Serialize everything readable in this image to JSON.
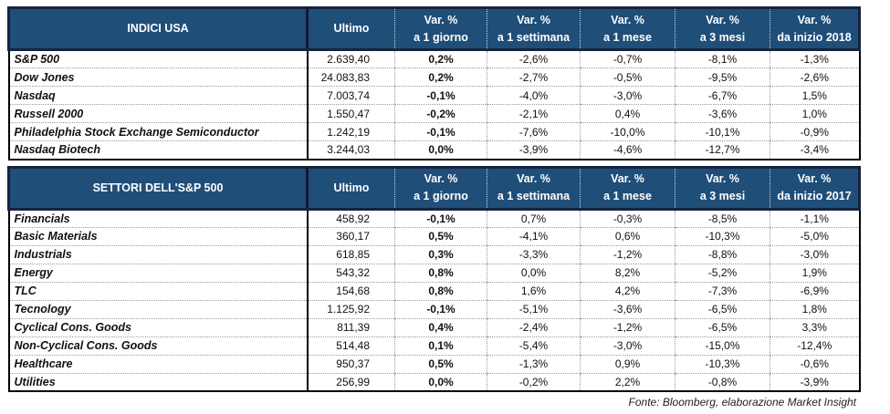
{
  "colors": {
    "header_bg": "#1F4E79",
    "header_border": "#16233F",
    "header_text": "#FFFFFF",
    "body_border": "#000000",
    "grid_dotted": "#9A9A9A",
    "text": "#111111"
  },
  "footer": {
    "source_note": "Fonte: Bloomberg, elaborazione Market Insight"
  },
  "tables": [
    {
      "title": "INDICI USA",
      "columns": [
        "Ultimo",
        "Var. %\na 1 giorno",
        "Var. %\na 1 settimana",
        "Var. %\na 1 mese",
        "Var. %\na 3 mesi",
        "Var. %\nda inizio 2018"
      ],
      "rows": [
        {
          "name": "S&P 500",
          "values": [
            "2.639,40",
            "0,2%",
            "-2,6%",
            "-0,7%",
            "-8,1%",
            "-1,3%"
          ]
        },
        {
          "name": "Dow Jones",
          "values": [
            "24.083,83",
            "0,2%",
            "-2,7%",
            "-0,5%",
            "-9,5%",
            "-2,6%"
          ]
        },
        {
          "name": "Nasdaq",
          "values": [
            "7.003,74",
            "-0,1%",
            "-4,0%",
            "-3,0%",
            "-6,7%",
            "1,5%"
          ]
        },
        {
          "name": "Russell 2000",
          "values": [
            "1.550,47",
            "-0,2%",
            "-2,1%",
            "0,4%",
            "-3,6%",
            "1,0%"
          ]
        },
        {
          "name": "Philadelphia Stock Exchange Semiconductor",
          "values": [
            "1.242,19",
            "-0,1%",
            "-7,6%",
            "-10,0%",
            "-10,1%",
            "-0,9%"
          ]
        },
        {
          "name": "Nasdaq Biotech",
          "values": [
            "3.244,03",
            "0,0%",
            "-3,9%",
            "-4,6%",
            "-12,7%",
            "-3,4%"
          ]
        }
      ]
    },
    {
      "title": "SETTORI DELL'S&P 500",
      "columns": [
        "Ultimo",
        "Var. %\na 1 giorno",
        "Var. %\na 1 settimana",
        "Var. %\na 1 mese",
        "Var. %\na 3 mesi",
        "Var. %\nda inizio 2017"
      ],
      "rows": [
        {
          "name": "Financials",
          "values": [
            "458,92",
            "-0,1%",
            "0,7%",
            "-0,3%",
            "-8,5%",
            "-1,1%"
          ]
        },
        {
          "name": "Basic Materials",
          "values": [
            "360,17",
            "0,5%",
            "-4,1%",
            "0,6%",
            "-10,3%",
            "-5,0%"
          ]
        },
        {
          "name": "Industrials",
          "values": [
            "618,85",
            "0,3%",
            "-3,3%",
            "-1,2%",
            "-8,8%",
            "-3,0%"
          ]
        },
        {
          "name": "Energy",
          "values": [
            "543,32",
            "0,8%",
            "0,0%",
            "8,2%",
            "-5,2%",
            "1,9%"
          ]
        },
        {
          "name": "TLC",
          "values": [
            "154,68",
            "0,8%",
            "1,6%",
            "4,2%",
            "-7,3%",
            "-6,9%"
          ]
        },
        {
          "name": "Tecnology",
          "values": [
            "1.125,92",
            "-0,1%",
            "-5,1%",
            "-3,6%",
            "-6,5%",
            "1,8%"
          ]
        },
        {
          "name": "Cyclical Cons. Goods",
          "values": [
            "811,39",
            "0,4%",
            "-2,4%",
            "-1,2%",
            "-6,5%",
            "3,3%"
          ]
        },
        {
          "name": "Non-Cyclical Cons. Goods",
          "values": [
            "514,48",
            "0,1%",
            "-5,4%",
            "-3,0%",
            "-15,0%",
            "-12,4%"
          ]
        },
        {
          "name": "Healthcare",
          "values": [
            "950,37",
            "0,5%",
            "-1,3%",
            "0,9%",
            "-10,3%",
            "-0,6%"
          ]
        },
        {
          "name": "Utilities",
          "values": [
            "256,99",
            "0,0%",
            "-0,2%",
            "2,2%",
            "-0,8%",
            "-3,9%"
          ]
        }
      ]
    }
  ]
}
